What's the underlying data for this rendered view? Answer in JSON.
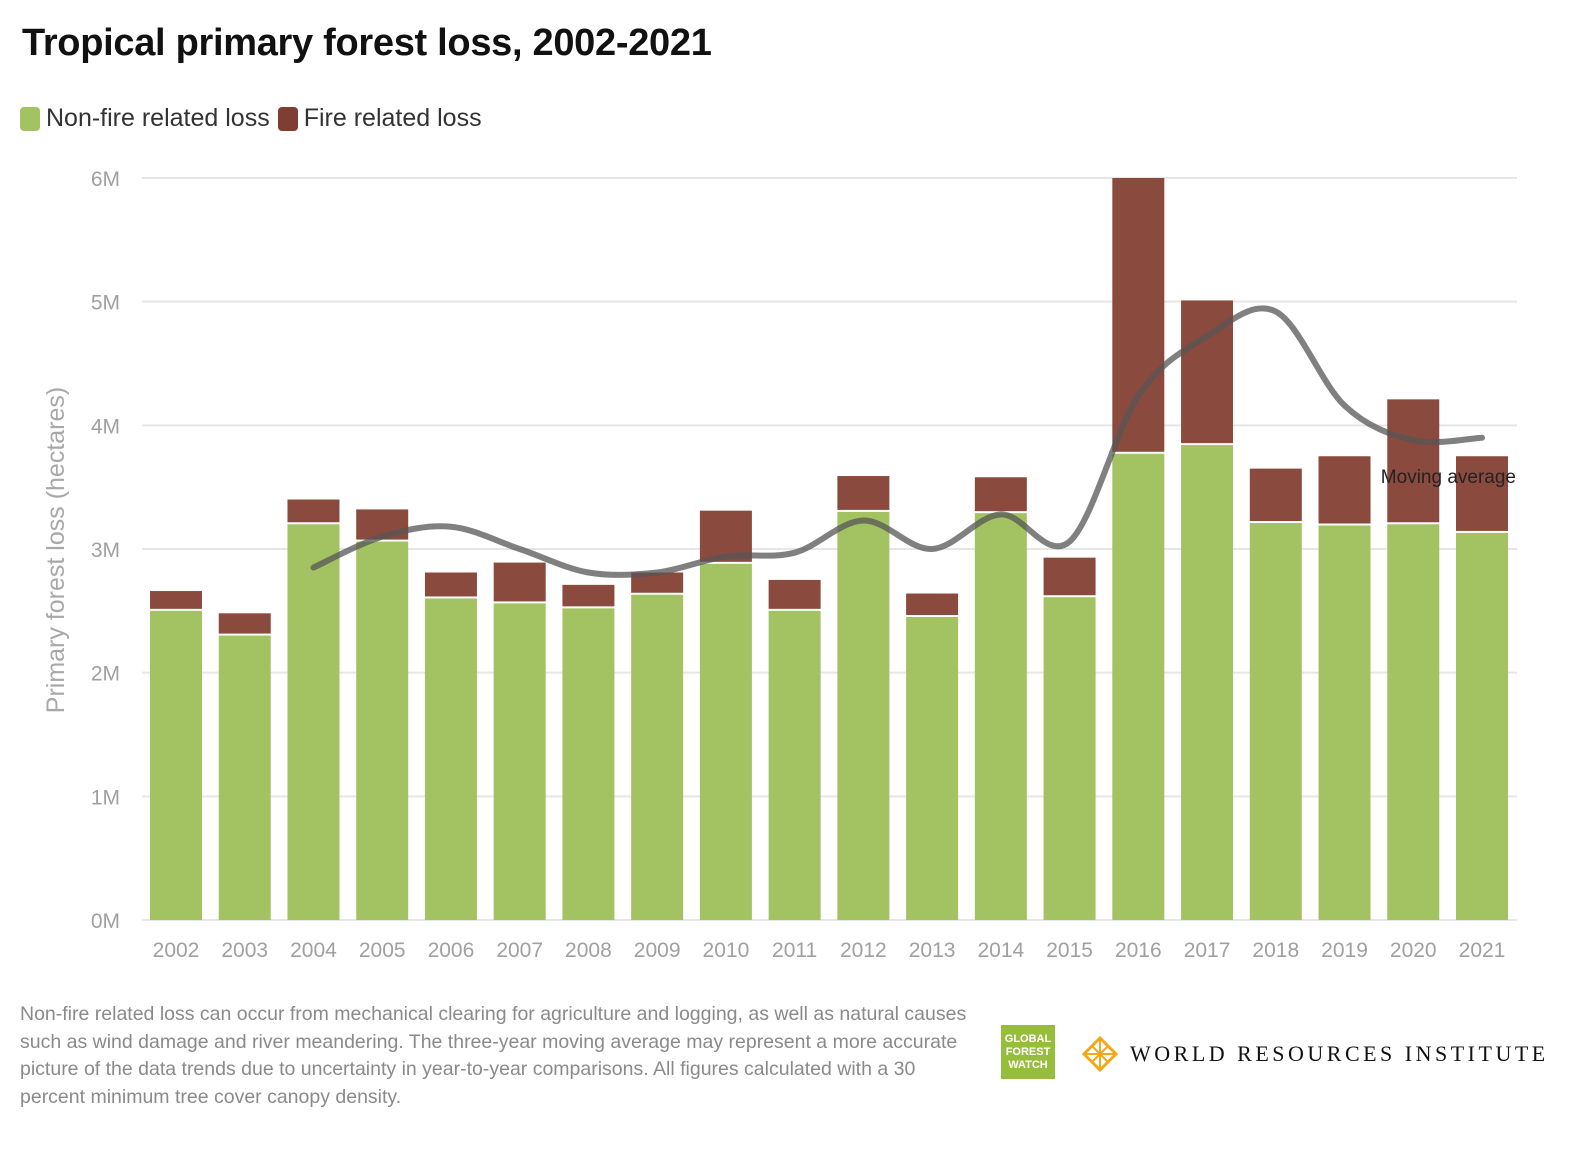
{
  "title": "Tropical primary forest loss, 2002-2021",
  "legend": [
    {
      "label": "Non-fire related loss",
      "color": "#a3c262"
    },
    {
      "label": "Fire related loss",
      "color": "#7f3e31"
    }
  ],
  "footnote": "Non-fire related loss can occur from mechanical clearing for agriculture and logging, as well as natural causes such as wind damage and river meandering. The three-year moving average may represent a more accurate picture of the data trends due to uncertainty in year-to-year comparisons. All figures calculated with a 30 percent minimum tree cover canopy density.",
  "logos": {
    "gfw": [
      "GLOBAL",
      "FOREST",
      "WATCH"
    ],
    "wri": "WORLD RESOURCES INSTITUTE"
  },
  "chart_data": {
    "type": "bar",
    "stacked": true,
    "title": "Tropical primary forest loss, 2002-2021",
    "xlabel": "",
    "ylabel": "Primary forest loss (hectares)",
    "ylim": [
      0,
      6000000
    ],
    "yticks": [
      0,
      1000000,
      2000000,
      3000000,
      4000000,
      5000000,
      6000000
    ],
    "ytick_labels": [
      "0M",
      "1M",
      "2M",
      "3M",
      "4M",
      "5M",
      "6M"
    ],
    "grid": true,
    "legend_position": "top-left",
    "categories": [
      "2002",
      "2003",
      "2004",
      "2005",
      "2006",
      "2007",
      "2008",
      "2009",
      "2010",
      "2011",
      "2012",
      "2013",
      "2014",
      "2015",
      "2016",
      "2017",
      "2018",
      "2019",
      "2020",
      "2021"
    ],
    "series": [
      {
        "name": "Non-fire related loss",
        "color": "#a3c262",
        "values": [
          2500000,
          2300000,
          3200000,
          3060000,
          2600000,
          2560000,
          2520000,
          2630000,
          2880000,
          2500000,
          3300000,
          2450000,
          3290000,
          2610000,
          3770000,
          3840000,
          3210000,
          3190000,
          3200000,
          3130000
        ]
      },
      {
        "name": "Fire related loss",
        "color": "#8b4a3e",
        "values": [
          160000,
          180000,
          200000,
          260000,
          210000,
          330000,
          190000,
          180000,
          430000,
          250000,
          290000,
          190000,
          290000,
          320000,
          2230000,
          1170000,
          440000,
          560000,
          1010000,
          620000
        ]
      }
    ],
    "moving_average": {
      "name": "Moving average",
      "color": "#555555",
      "categories": [
        "2004",
        "2005",
        "2006",
        "2007",
        "2008",
        "2009",
        "2010",
        "2011",
        "2012",
        "2013",
        "2014",
        "2015",
        "2016",
        "2017",
        "2018",
        "2019",
        "2020",
        "2021"
      ],
      "values": [
        2850000,
        3100000,
        3180000,
        3000000,
        2810000,
        2810000,
        2940000,
        2970000,
        3230000,
        3000000,
        3280000,
        3060000,
        4240000,
        4720000,
        4920000,
        4160000,
        3880000,
        3900000
      ]
    }
  }
}
